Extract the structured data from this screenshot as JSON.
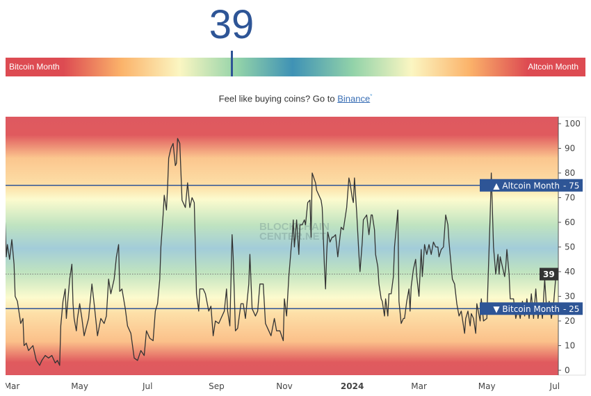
{
  "gauge": {
    "value": "39",
    "value_fraction": 0.39,
    "left_label": "Bitcoin Month",
    "right_label": "Altcoin Month"
  },
  "promo": {
    "text": "Feel like buying coins? Go to ",
    "link": "Binance",
    "sup": "*"
  },
  "watermark": "BLOCKCHAIN CENTER.NET",
  "colors": {
    "accent": "#2e5596",
    "line": "#333333",
    "current_label_bg": "#333333"
  },
  "chart_data": {
    "type": "line",
    "title": "",
    "xlabel": "",
    "ylabel": "",
    "ylim": [
      0,
      100
    ],
    "yticks": [
      "0",
      "10",
      "20",
      "30",
      "40",
      "50",
      "60",
      "70",
      "80",
      "90",
      "100"
    ],
    "xticks": [
      {
        "date": "2023-03-01",
        "label": "Mar"
      },
      {
        "date": "2023-05-01",
        "label": "May"
      },
      {
        "date": "2023-07-01",
        "label": "Jul"
      },
      {
        "date": "2023-09-01",
        "label": "Sep"
      },
      {
        "date": "2023-11-01",
        "label": "Nov"
      },
      {
        "date": "2024-01-01",
        "label": "2024",
        "bold": true
      },
      {
        "date": "2024-03-01",
        "label": "Mar"
      },
      {
        "date": "2024-05-01",
        "label": "May"
      },
      {
        "date": "2024-07-01",
        "label": "Jul"
      }
    ],
    "thresholds": [
      {
        "value": 75,
        "label": "▲ Altcoin Month",
        "value_label": "75"
      },
      {
        "value": 25,
        "label": "▼ Bitcoin Month",
        "value_label": "25"
      }
    ],
    "current": {
      "value": 39,
      "label": "39"
    },
    "background": "red at 0 and 100, orange near 10/90, yellow near 25/75, green near 35/65, blue at 50",
    "grid": false,
    "series": [
      {
        "points": [
          [
            "2023-02-23",
            60
          ],
          [
            "2023-02-24",
            46
          ],
          [
            "2023-02-25",
            51
          ],
          [
            "2023-02-27",
            45
          ],
          [
            "2023-03-01",
            53
          ],
          [
            "2023-03-03",
            43
          ],
          [
            "2023-03-04",
            30
          ],
          [
            "2023-03-06",
            28
          ],
          [
            "2023-03-09",
            19
          ],
          [
            "2023-03-11",
            21
          ],
          [
            "2023-03-12",
            10
          ],
          [
            "2023-03-14",
            11
          ],
          [
            "2023-03-16",
            8
          ],
          [
            "2023-03-20",
            10
          ],
          [
            "2023-03-23",
            4
          ],
          [
            "2023-03-26",
            2
          ],
          [
            "2023-03-28",
            4
          ],
          [
            "2023-03-31",
            6
          ],
          [
            "2023-04-03",
            5
          ],
          [
            "2023-04-06",
            6
          ],
          [
            "2023-04-09",
            3
          ],
          [
            "2023-04-11",
            4
          ],
          [
            "2023-04-13",
            2
          ],
          [
            "2023-04-14",
            18
          ],
          [
            "2023-04-16",
            28
          ],
          [
            "2023-04-18",
            33
          ],
          [
            "2023-04-19",
            21
          ],
          [
            "2023-04-22",
            37
          ],
          [
            "2023-04-24",
            43
          ],
          [
            "2023-04-25",
            27
          ],
          [
            "2023-04-26",
            21
          ],
          [
            "2023-04-28",
            16
          ],
          [
            "2023-04-29",
            21
          ],
          [
            "2023-05-01",
            27
          ],
          [
            "2023-05-03",
            21
          ],
          [
            "2023-05-05",
            14
          ],
          [
            "2023-05-09",
            21
          ],
          [
            "2023-05-12",
            35
          ],
          [
            "2023-05-14",
            27
          ],
          [
            "2023-05-17",
            14
          ],
          [
            "2023-05-20",
            21
          ],
          [
            "2023-05-23",
            19
          ],
          [
            "2023-05-25",
            22
          ],
          [
            "2023-05-27",
            37
          ],
          [
            "2023-05-29",
            31
          ],
          [
            "2023-06-01",
            37
          ],
          [
            "2023-06-03",
            46
          ],
          [
            "2023-06-05",
            51
          ],
          [
            "2023-06-06",
            32
          ],
          [
            "2023-06-08",
            33
          ],
          [
            "2023-06-11",
            25
          ],
          [
            "2023-06-13",
            18
          ],
          [
            "2023-06-16",
            15
          ],
          [
            "2023-06-19",
            5
          ],
          [
            "2023-06-22",
            4
          ],
          [
            "2023-06-25",
            8
          ],
          [
            "2023-06-28",
            6
          ],
          [
            "2023-06-30",
            16
          ],
          [
            "2023-07-03",
            13
          ],
          [
            "2023-07-06",
            12
          ],
          [
            "2023-07-08",
            24
          ],
          [
            "2023-07-10",
            27
          ],
          [
            "2023-07-12",
            37
          ],
          [
            "2023-07-13",
            50
          ],
          [
            "2023-07-15",
            63
          ],
          [
            "2023-07-16",
            71
          ],
          [
            "2023-07-18",
            65
          ],
          [
            "2023-07-19",
            74
          ],
          [
            "2023-07-20",
            86
          ],
          [
            "2023-07-22",
            90
          ],
          [
            "2023-07-24",
            92
          ],
          [
            "2023-07-26",
            83
          ],
          [
            "2023-07-27",
            84
          ],
          [
            "2023-07-28",
            94
          ],
          [
            "2023-07-30",
            92
          ],
          [
            "2023-08-01",
            69
          ],
          [
            "2023-08-02",
            68
          ],
          [
            "2023-08-04",
            66
          ],
          [
            "2023-08-06",
            76
          ],
          [
            "2023-08-08",
            66
          ],
          [
            "2023-08-10",
            70
          ],
          [
            "2023-08-12",
            68
          ],
          [
            "2023-08-14",
            31
          ],
          [
            "2023-08-16",
            24
          ],
          [
            "2023-08-17",
            33
          ],
          [
            "2023-08-20",
            33
          ],
          [
            "2023-08-22",
            31
          ],
          [
            "2023-08-25",
            24
          ],
          [
            "2023-08-27",
            26
          ],
          [
            "2023-08-29",
            14
          ],
          [
            "2023-08-31",
            20
          ],
          [
            "2023-09-03",
            19
          ],
          [
            "2023-09-05",
            21
          ],
          [
            "2023-09-08",
            24
          ],
          [
            "2023-09-10",
            33
          ],
          [
            "2023-09-11",
            24
          ],
          [
            "2023-09-13",
            18
          ],
          [
            "2023-09-15",
            55
          ],
          [
            "2023-09-16",
            46
          ],
          [
            "2023-09-18",
            16
          ],
          [
            "2023-09-20",
            17
          ],
          [
            "2023-09-23",
            27
          ],
          [
            "2023-09-25",
            27
          ],
          [
            "2023-09-27",
            21
          ],
          [
            "2023-09-30",
            35
          ],
          [
            "2023-10-01",
            47
          ],
          [
            "2023-10-03",
            25
          ],
          [
            "2023-10-06",
            22
          ],
          [
            "2023-10-08",
            24
          ],
          [
            "2023-10-10",
            35
          ],
          [
            "2023-10-13",
            35
          ],
          [
            "2023-10-15",
            19
          ],
          [
            "2023-10-18",
            16
          ],
          [
            "2023-10-20",
            14
          ],
          [
            "2023-10-23",
            21
          ],
          [
            "2023-10-25",
            16
          ],
          [
            "2023-10-28",
            16
          ],
          [
            "2023-10-31",
            12
          ],
          [
            "2023-11-01",
            29
          ],
          [
            "2023-11-03",
            22
          ],
          [
            "2023-11-05",
            38
          ],
          [
            "2023-11-07",
            49
          ],
          [
            "2023-11-08",
            54
          ],
          [
            "2023-11-09",
            61
          ],
          [
            "2023-11-10",
            50
          ],
          [
            "2023-11-12",
            61
          ],
          [
            "2023-11-14",
            47
          ],
          [
            "2023-11-15",
            59
          ],
          [
            "2023-11-17",
            59
          ],
          [
            "2023-11-19",
            61
          ],
          [
            "2023-11-20",
            59
          ],
          [
            "2023-11-22",
            68
          ],
          [
            "2023-11-24",
            69
          ],
          [
            "2023-11-25",
            54
          ],
          [
            "2023-11-26",
            80
          ],
          [
            "2023-11-29",
            76
          ],
          [
            "2023-11-30",
            73
          ],
          [
            "2023-12-02",
            71
          ],
          [
            "2023-12-04",
            69
          ],
          [
            "2023-12-05",
            66
          ],
          [
            "2023-12-07",
            42
          ],
          [
            "2023-12-08",
            33
          ],
          [
            "2023-12-09",
            47
          ],
          [
            "2023-12-10",
            56
          ],
          [
            "2023-12-12",
            52
          ],
          [
            "2023-12-14",
            54
          ],
          [
            "2023-12-15",
            54
          ],
          [
            "2023-12-17",
            55
          ],
          [
            "2023-12-19",
            46
          ],
          [
            "2023-12-20",
            50
          ],
          [
            "2023-12-22",
            58
          ],
          [
            "2023-12-24",
            57
          ],
          [
            "2023-12-27",
            66
          ],
          [
            "2023-12-29",
            78
          ],
          [
            "2023-12-30",
            76
          ],
          [
            "2024-01-01",
            70
          ],
          [
            "2024-01-02",
            68
          ],
          [
            "2024-01-03",
            78
          ],
          [
            "2024-01-05",
            64
          ],
          [
            "2024-01-07",
            47
          ],
          [
            "2024-01-08",
            40
          ],
          [
            "2024-01-10",
            52
          ],
          [
            "2024-01-11",
            61
          ],
          [
            "2024-01-14",
            63
          ],
          [
            "2024-01-16",
            55
          ],
          [
            "2024-01-18",
            63
          ],
          [
            "2024-01-19",
            63
          ],
          [
            "2024-01-21",
            57
          ],
          [
            "2024-01-22",
            47
          ],
          [
            "2024-01-24",
            42
          ],
          [
            "2024-01-25",
            35
          ],
          [
            "2024-01-27",
            29
          ],
          [
            "2024-01-28",
            28
          ],
          [
            "2024-01-30",
            22
          ],
          [
            "2024-01-31",
            29
          ],
          [
            "2024-02-02",
            22
          ],
          [
            "2024-02-03",
            31
          ],
          [
            "2024-02-05",
            31
          ],
          [
            "2024-02-07",
            38
          ],
          [
            "2024-02-08",
            50
          ],
          [
            "2024-02-10",
            60
          ],
          [
            "2024-02-11",
            65
          ],
          [
            "2024-02-12",
            28
          ],
          [
            "2024-02-14",
            19
          ],
          [
            "2024-02-16",
            21
          ],
          [
            "2024-02-17",
            21
          ],
          [
            "2024-02-19",
            28
          ],
          [
            "2024-02-21",
            33
          ],
          [
            "2024-02-22",
            24
          ],
          [
            "2024-02-23",
            34
          ],
          [
            "2024-02-25",
            41
          ],
          [
            "2024-02-27",
            45
          ],
          [
            "2024-02-28",
            38
          ],
          [
            "2024-03-01",
            30
          ],
          [
            "2024-03-03",
            49
          ],
          [
            "2024-03-04",
            38
          ],
          [
            "2024-03-06",
            51
          ],
          [
            "2024-03-08",
            47
          ],
          [
            "2024-03-10",
            51
          ],
          [
            "2024-03-12",
            47
          ],
          [
            "2024-03-14",
            52
          ],
          [
            "2024-03-16",
            50
          ],
          [
            "2024-03-18",
            50
          ],
          [
            "2024-03-19",
            46
          ],
          [
            "2024-03-21",
            49
          ],
          [
            "2024-03-23",
            50
          ],
          [
            "2024-03-25",
            63
          ],
          [
            "2024-03-27",
            59
          ],
          [
            "2024-03-28",
            52
          ],
          [
            "2024-03-29",
            47
          ],
          [
            "2024-03-31",
            37
          ],
          [
            "2024-04-02",
            35
          ],
          [
            "2024-04-04",
            27
          ],
          [
            "2024-04-06",
            22
          ],
          [
            "2024-04-08",
            24
          ],
          [
            "2024-04-11",
            15
          ],
          [
            "2024-04-12",
            21
          ],
          [
            "2024-04-14",
            24
          ],
          [
            "2024-04-16",
            18
          ],
          [
            "2024-04-17",
            23
          ],
          [
            "2024-04-19",
            21
          ],
          [
            "2024-04-21",
            15
          ],
          [
            "2024-04-22",
            27
          ],
          [
            "2024-04-25",
            20
          ],
          [
            "2024-04-26",
            29
          ],
          [
            "2024-04-28",
            20
          ],
          [
            "2024-05-01",
            21
          ],
          [
            "2024-05-02",
            35
          ],
          [
            "2024-05-04",
            63
          ],
          [
            "2024-05-05",
            80
          ],
          [
            "2024-05-07",
            50
          ],
          [
            "2024-05-09",
            39
          ],
          [
            "2024-05-11",
            47
          ],
          [
            "2024-05-12",
            39
          ],
          [
            "2024-05-13",
            46
          ],
          [
            "2024-05-15",
            42
          ],
          [
            "2024-05-17",
            38
          ],
          [
            "2024-05-18",
            42
          ],
          [
            "2024-05-19",
            49
          ],
          [
            "2024-05-21",
            39
          ],
          [
            "2024-05-22",
            29
          ],
          [
            "2024-05-25",
            29
          ],
          [
            "2024-05-27",
            21
          ],
          [
            "2024-05-29",
            25
          ],
          [
            "2024-05-31",
            21
          ],
          [
            "2024-06-02",
            28
          ],
          [
            "2024-06-04",
            22
          ],
          [
            "2024-06-06",
            29
          ],
          [
            "2024-06-08",
            21
          ],
          [
            "2024-06-10",
            31
          ],
          [
            "2024-06-12",
            21
          ],
          [
            "2024-06-14",
            33
          ],
          [
            "2024-06-16",
            21
          ],
          [
            "2024-06-18",
            27
          ],
          [
            "2024-06-20",
            21
          ],
          [
            "2024-06-22",
            37
          ],
          [
            "2024-06-24",
            23
          ],
          [
            "2024-06-26",
            28
          ],
          [
            "2024-06-28",
            21
          ],
          [
            "2024-06-30",
            27
          ],
          [
            "2024-07-02",
            38
          ],
          [
            "2024-07-04",
            39
          ]
        ]
      }
    ]
  }
}
